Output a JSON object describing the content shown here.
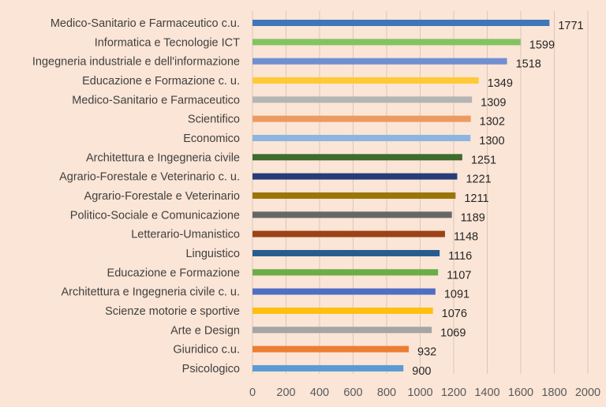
{
  "chart_data": {
    "type": "bar",
    "orientation": "horizontal",
    "title": "",
    "xlabel": "",
    "ylabel": "",
    "xlim": [
      0,
      2000
    ],
    "ticks": [
      0,
      200,
      400,
      600,
      800,
      1000,
      1200,
      1400,
      1600,
      1800,
      2000
    ],
    "grid": true,
    "categories": [
      "Medico-Sanitario e Farmaceutico c.u.",
      "Informatica e Tecnologie ICT",
      "Ingegneria industriale e dell'informazione",
      "Educazione e Formazione c. u.",
      "Medico-Sanitario e Farmaceutico",
      "Scientifico",
      "Economico",
      "Architettura e Ingegneria civile",
      "Agrario-Forestale e Veterinario c. u.",
      "Agrario-Forestale e Veterinario",
      "Politico-Sociale e Comunicazione",
      "Letterario-Umanistico",
      "Linguistico",
      "Educazione e Formazione",
      "Architettura e Ingegneria civile c. u.",
      "Scienze motorie e sportive",
      "Arte e Design",
      "Giuridico c.u.",
      "Psicologico"
    ],
    "values": [
      1771,
      1599,
      1518,
      1349,
      1309,
      1302,
      1300,
      1251,
      1221,
      1211,
      1189,
      1148,
      1116,
      1107,
      1091,
      1076,
      1069,
      932,
      900
    ],
    "colors": [
      "#3f75bb",
      "#82c462",
      "#6f8fd0",
      "#ffc938",
      "#b5b5b5",
      "#ec9a62",
      "#8cb6e0",
      "#3f6b2c",
      "#273d78",
      "#9a7509",
      "#676767",
      "#9c4216",
      "#265c90",
      "#6cae46",
      "#4f6fc4",
      "#fdbf11",
      "#a5a5a5",
      "#ed7d31",
      "#5b9bd5"
    ]
  }
}
